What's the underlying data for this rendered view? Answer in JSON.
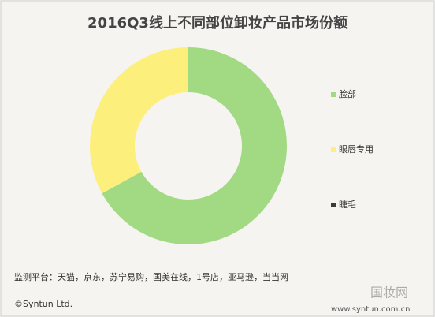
{
  "chart_data": {
    "type": "donut",
    "title": "2016Q3线上不同部位卸妆产品市场份额",
    "categories": [
      "脸部",
      "眼唇专用",
      "睫毛"
    ],
    "values": [
      67,
      32.9,
      0.1
    ],
    "colors": [
      "#a2d983",
      "#fcef7c",
      "#3a3a3a"
    ],
    "source": "监测平台：天猫，京东，苏宁易购，国美在线，1号店，亚马逊，当当网",
    "copyright": "©Syntun Ltd.",
    "website": "www.syntun.com.cn",
    "watermark": "国妆网"
  }
}
